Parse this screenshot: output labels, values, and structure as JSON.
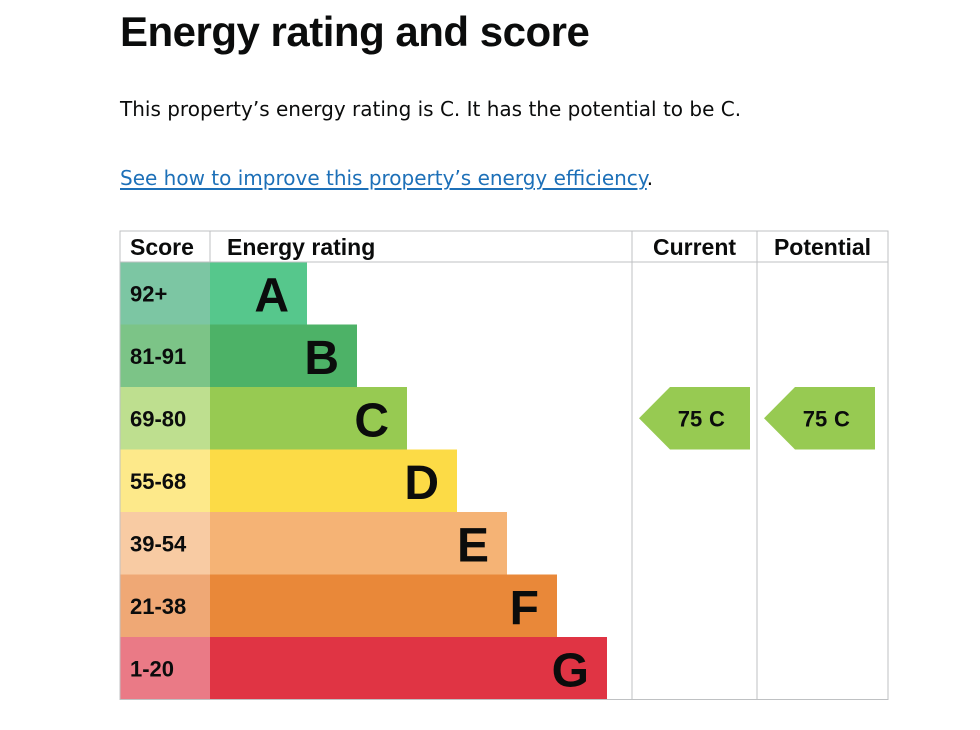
{
  "page": {
    "heading": "Energy rating and score",
    "summary": "This property’s energy rating is C. It has the potential to be C.",
    "link_text": "See how to improve this property’s energy efficiency",
    "link_suffix": "."
  },
  "chart_data": {
    "type": "bar",
    "headers": {
      "score": "Score",
      "rating": "Energy rating",
      "current": "Current",
      "potential": "Potential"
    },
    "bands": [
      {
        "letter": "A",
        "range": "92+",
        "bar_color": "#56c78c",
        "score_bg": "#7cc6a3"
      },
      {
        "letter": "B",
        "range": "81-91",
        "bar_color": "#4db267",
        "score_bg": "#7cc487"
      },
      {
        "letter": "C",
        "range": "69-80",
        "bar_color": "#97ca52",
        "score_bg": "#bedf8f"
      },
      {
        "letter": "D",
        "range": "55-68",
        "bar_color": "#fcdb46",
        "score_bg": "#fde98a"
      },
      {
        "letter": "E",
        "range": "39-54",
        "bar_color": "#f5b375",
        "score_bg": "#f8cba3"
      },
      {
        "letter": "F",
        "range": "21-38",
        "bar_color": "#e98839",
        "score_bg": "#efa875"
      },
      {
        "letter": "G",
        "range": "1-20",
        "bar_color": "#e03444",
        "score_bg": "#ea7a86"
      }
    ],
    "current": {
      "score": "75",
      "band": "C",
      "color": "#97ca52"
    },
    "potential": {
      "score": "75",
      "band": "C",
      "color": "#97ca52"
    },
    "grid_color": "#bfc1c3"
  }
}
